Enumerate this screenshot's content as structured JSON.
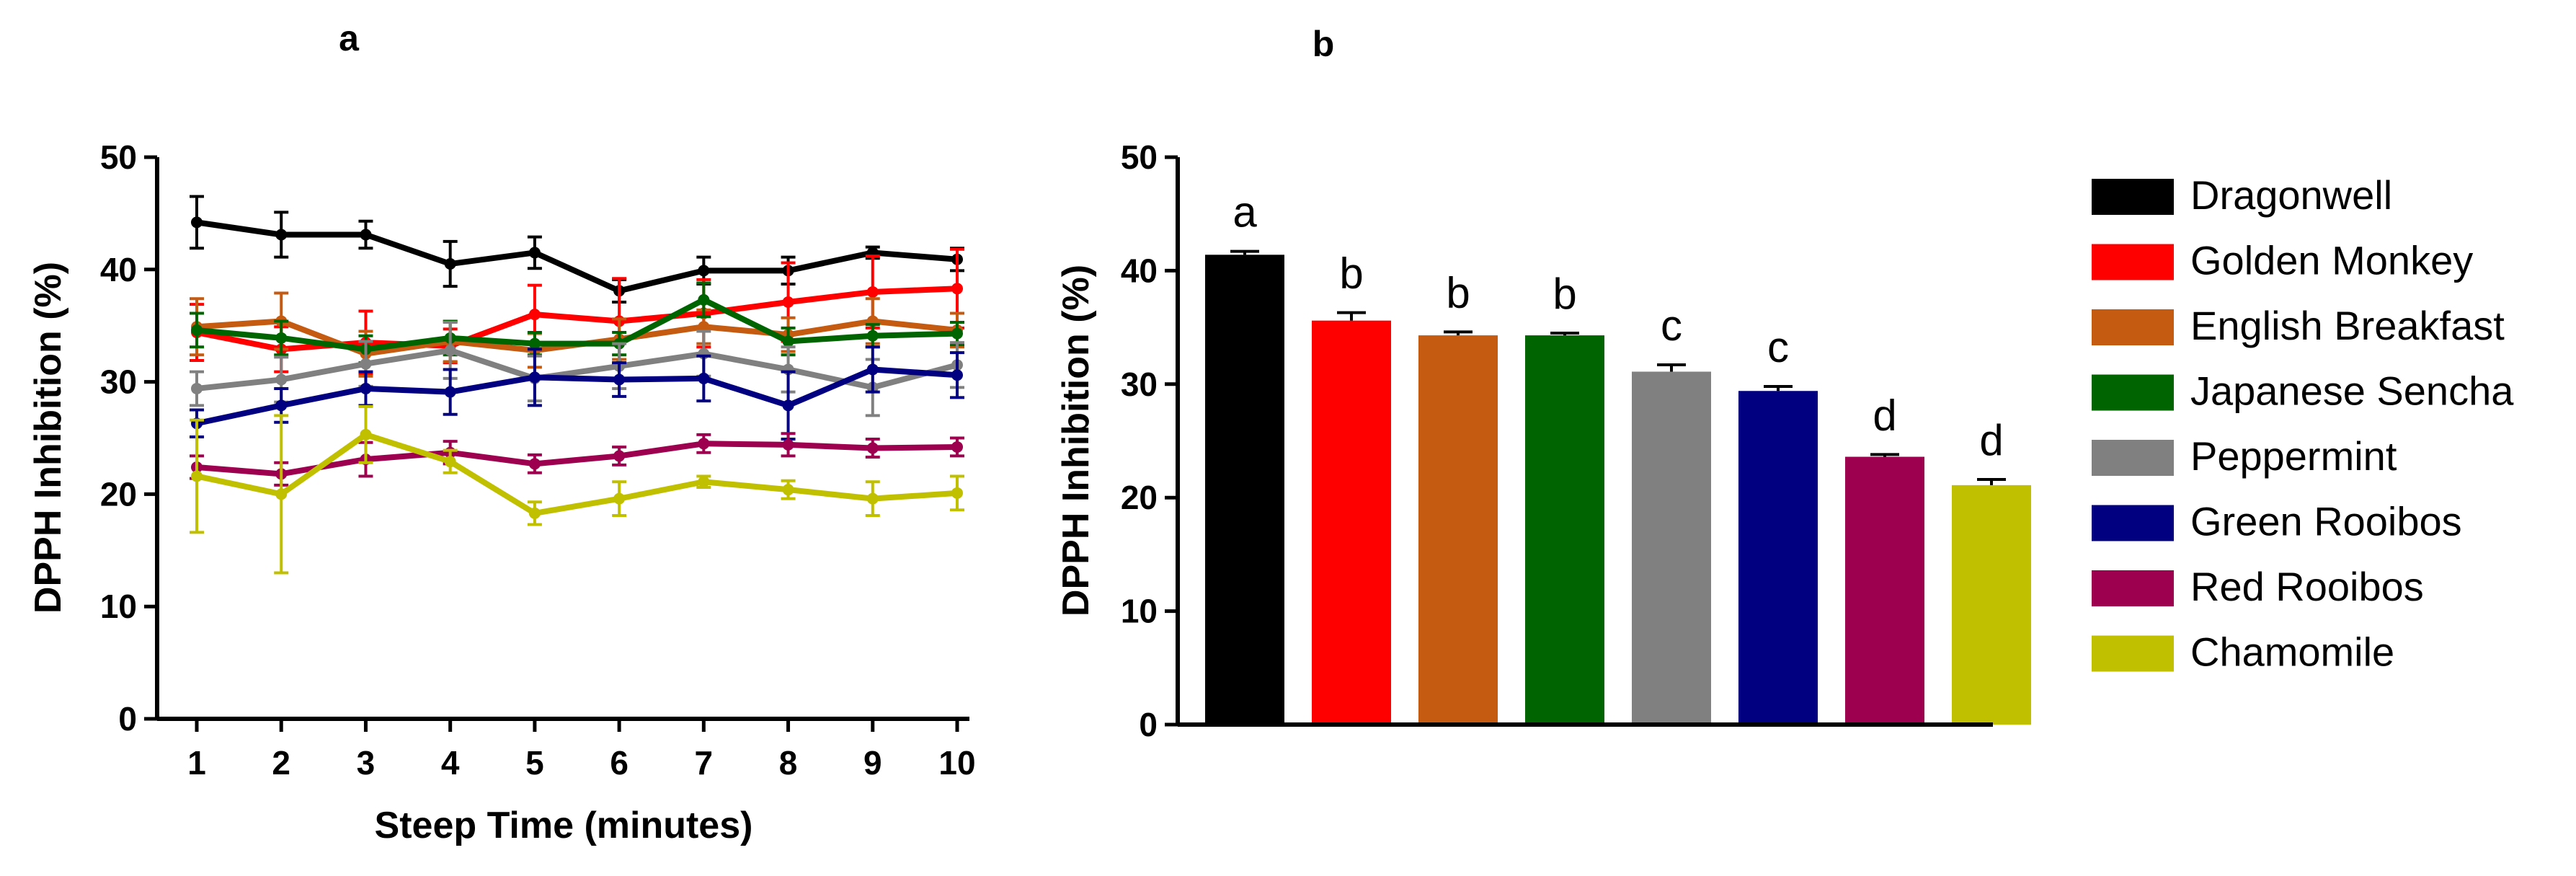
{
  "chart_data": [
    {
      "type": "line",
      "panel_label": "a",
      "title": "",
      "xlabel": "Steep Time (minutes)",
      "ylabel": "DPPH Inhibition (%)",
      "x": [
        1,
        2,
        3,
        4,
        5,
        6,
        7,
        8,
        9,
        10
      ],
      "xticks": [
        "1",
        "2",
        "3",
        "4",
        "5",
        "6",
        "7",
        "8",
        "9",
        "10"
      ],
      "ylim": [
        0,
        50
      ],
      "yticks": [
        "0",
        "10",
        "20",
        "30",
        "40",
        "50"
      ],
      "error_bars": true,
      "series": [
        {
          "name": "Dragonwell",
          "color": "#000000",
          "values": [
            44.2,
            43.1,
            43.1,
            40.5,
            41.5,
            38.1,
            39.9,
            39.9,
            41.5,
            40.9
          ],
          "errors": [
            2.3,
            2.0,
            1.2,
            2.0,
            1.4,
            1.0,
            1.2,
            1.2,
            0.5,
            1.0
          ]
        },
        {
          "name": "Golden Monkey",
          "color": "#ff0000",
          "values": [
            34.4,
            32.9,
            33.5,
            33.2,
            36.0,
            35.4,
            36.1,
            37.1,
            38.0,
            38.3
          ],
          "errors": [
            2.5,
            2.0,
            2.8,
            1.5,
            2.6,
            3.8,
            3.0,
            3.5,
            3.2,
            3.5
          ]
        },
        {
          "name": "English Breakfast",
          "color": "#c55a11",
          "values": [
            34.9,
            35.4,
            32.5,
            33.6,
            32.8,
            33.8,
            34.9,
            34.2,
            35.4,
            34.6
          ],
          "errors": [
            2.5,
            2.5,
            2.0,
            1.8,
            1.5,
            1.8,
            1.5,
            1.5,
            2.0,
            1.5
          ]
        },
        {
          "name": "Japanese Sencha",
          "color": "#006400",
          "values": [
            34.6,
            33.9,
            32.9,
            33.9,
            33.4,
            33.4,
            37.3,
            33.6,
            34.1,
            34.3
          ],
          "errors": [
            1.5,
            1.5,
            1.2,
            1.5,
            1.0,
            1.0,
            1.5,
            1.2,
            1.0,
            1.0
          ]
        },
        {
          "name": "Peppermint",
          "color": "#808080",
          "values": [
            29.4,
            30.2,
            31.6,
            32.8,
            30.3,
            31.4,
            32.5,
            31.1,
            29.5,
            31.5
          ],
          "errors": [
            1.5,
            2.0,
            2.0,
            2.5,
            2.0,
            2.0,
            2.0,
            2.0,
            2.5,
            2.0
          ]
        },
        {
          "name": "Green Rooibos",
          "color": "#000080",
          "values": [
            26.3,
            27.9,
            29.4,
            29.1,
            30.4,
            30.2,
            30.3,
            27.9,
            31.1,
            30.6
          ],
          "errors": [
            1.2,
            1.5,
            1.5,
            2.0,
            2.5,
            1.5,
            2.0,
            3.0,
            2.0,
            2.0
          ]
        },
        {
          "name": "Red Rooibos",
          "color": "#9e0050",
          "values": [
            22.4,
            21.8,
            23.1,
            23.7,
            22.7,
            23.4,
            24.5,
            24.4,
            24.1,
            24.2
          ],
          "errors": [
            1.0,
            1.0,
            1.5,
            1.0,
            0.8,
            0.8,
            0.8,
            1.0,
            0.8,
            0.8
          ]
        },
        {
          "name": "Chamomile",
          "color": "#c0c000",
          "values": [
            21.6,
            20.0,
            25.3,
            22.9,
            18.3,
            19.6,
            21.1,
            20.4,
            19.6,
            20.1
          ],
          "errors": [
            5.0,
            7.0,
            2.5,
            1.0,
            1.0,
            1.5,
            0.5,
            0.8,
            1.5,
            1.5
          ]
        }
      ]
    },
    {
      "type": "bar",
      "panel_label": "b",
      "title": "",
      "xlabel": "",
      "ylabel": "DPPH Inhibition (%)",
      "ylim": [
        0,
        50
      ],
      "yticks": [
        "0",
        "10",
        "20",
        "30",
        "40",
        "50"
      ],
      "categories": [
        "Dragonwell",
        "Golden Monkey",
        "English Breakfast",
        "Japanese Sencha",
        "Peppermint",
        "Green Rooibos",
        "Red Rooibos",
        "Chamomile"
      ],
      "values": [
        41.4,
        35.6,
        34.3,
        34.3,
        31.1,
        29.4,
        23.6,
        21.1
      ],
      "errors": [
        0.3,
        0.7,
        0.3,
        0.2,
        0.6,
        0.4,
        0.2,
        0.5
      ],
      "annotations": [
        "a",
        "b",
        "b",
        "b",
        "c",
        "c",
        "d",
        "d"
      ],
      "colors": [
        "#000000",
        "#ff0000",
        "#c55a11",
        "#006400",
        "#808080",
        "#000080",
        "#9e0050",
        "#c0c000"
      ],
      "legend": {
        "position": "right",
        "entries": [
          "Dragonwell",
          "Golden Monkey",
          "English Breakfast",
          "Japanese Sencha",
          "Peppermint",
          "Green Rooibos",
          "Red Rooibos",
          "Chamomile"
        ]
      }
    }
  ]
}
